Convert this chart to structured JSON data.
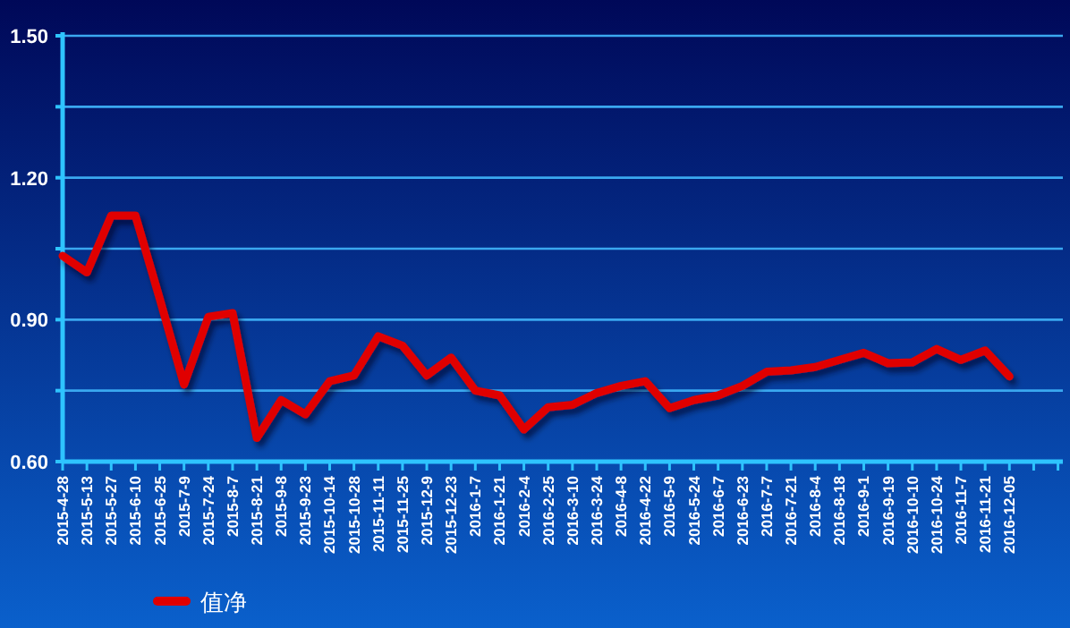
{
  "chart_data": {
    "type": "line",
    "categories": [
      "2015-4-28",
      "2015-5-13",
      "2015-5-27",
      "2015-6-10",
      "2015-6-25",
      "2015-7-9",
      "2015-7-24",
      "2015-8-7",
      "2015-8-21",
      "2015-9-8",
      "2015-9-23",
      "2015-10-14",
      "2015-10-28",
      "2015-11-11",
      "2015-11-25",
      "2015-12-9",
      "2015-12-23",
      "2016-1-7",
      "2016-1-21",
      "2016-2-4",
      "2016-2-25",
      "2016-3-10",
      "2016-3-24",
      "2016-4-8",
      "2016-4-22",
      "2016-5-9",
      "2016-5-24",
      "2016-6-7",
      "2016-6-23",
      "2016-7-7",
      "2016-7-21",
      "2016-8-4",
      "2016-8-18",
      "2016-9-1",
      "2016-9-19",
      "2016-10-10",
      "2016-10-24",
      "2016-11-7",
      "2016-11-21",
      "2016-12-05",
      null,
      null
    ],
    "series": [
      {
        "name": "值净",
        "color": "#e00000",
        "values": [
          1.035,
          1.0,
          1.12,
          1.12,
          0.944,
          0.763,
          0.906,
          0.914,
          0.65,
          0.73,
          0.7,
          0.77,
          0.782,
          0.865,
          0.845,
          0.782,
          0.82,
          0.75,
          0.74,
          0.668,
          0.715,
          0.72,
          0.745,
          0.76,
          0.77,
          0.713,
          0.73,
          0.74,
          0.76,
          0.79,
          0.793,
          0.8,
          0.815,
          0.83,
          0.808,
          0.81,
          0.838,
          0.815,
          0.835,
          0.78,
          null,
          null
        ]
      }
    ],
    "ylim": [
      0.6,
      1.5
    ],
    "yticks": [
      {
        "value": 0.6,
        "label": "0.60"
      },
      {
        "value": 0.75,
        "label": null
      },
      {
        "value": 0.9,
        "label": "0.90"
      },
      {
        "value": 1.05,
        "label": null
      },
      {
        "value": 1.2,
        "label": "1.20"
      },
      {
        "value": 1.35,
        "label": null
      },
      {
        "value": 1.5,
        "label": "1.50"
      }
    ],
    "grid": "y",
    "legend": "bottom left",
    "marker": "none",
    "line_style": "solid"
  }
}
